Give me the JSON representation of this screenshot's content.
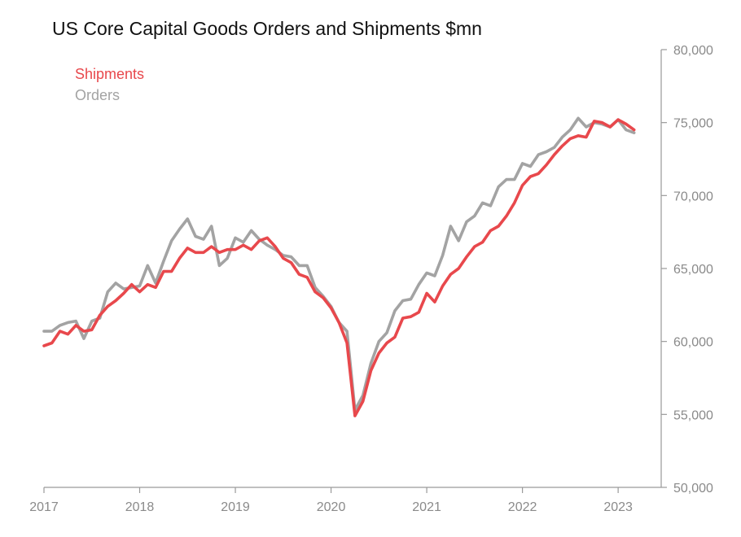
{
  "chart_data": {
    "type": "line",
    "title": "US Core Capital Goods Orders and Shipments $mn",
    "xlabel": "",
    "ylabel": "",
    "x_start": 2017.0,
    "x_step": 0.08333,
    "xlim": [
      2017.0,
      2023.45
    ],
    "ylim": [
      50000,
      80000
    ],
    "y_axis_side": "right",
    "x_ticks": [
      "2017",
      "2018",
      "2019",
      "2020",
      "2021",
      "2022",
      "2023"
    ],
    "y_ticks": [
      "50,000",
      "55,000",
      "60,000",
      "65,000",
      "70,000",
      "75,000",
      "80,000"
    ],
    "legend_position": "top-left",
    "colors": {
      "shipments": "#e8484c",
      "orders": "#a3a3a3"
    },
    "series": [
      {
        "name": "Shipments",
        "values": [
          59700,
          59900,
          60700,
          60500,
          61100,
          60700,
          60800,
          61800,
          62400,
          62800,
          63300,
          63900,
          63400,
          63900,
          63700,
          64800,
          64800,
          65700,
          66400,
          66100,
          66100,
          66500,
          66100,
          66300,
          66300,
          66600,
          66300,
          66900,
          67100,
          66500,
          65700,
          65400,
          64600,
          64400,
          63400,
          63000,
          62300,
          61300,
          59900,
          54900,
          55900,
          58000,
          59200,
          59900,
          60300,
          61600,
          61700,
          62000,
          63300,
          62700,
          63800,
          64600,
          65000,
          65800,
          66500,
          66800,
          67600,
          67900,
          68600,
          69500,
          70700,
          71300,
          71500,
          72100,
          72800,
          73400,
          73900,
          74100,
          74000,
          75100,
          75000,
          74700,
          75200,
          74900,
          74500
        ]
      },
      {
        "name": "Orders",
        "values": [
          60700,
          60700,
          61100,
          61300,
          61400,
          60200,
          61400,
          61600,
          63400,
          64000,
          63600,
          63700,
          63800,
          65200,
          64000,
          65500,
          66900,
          67700,
          68400,
          67200,
          67000,
          67900,
          65200,
          65700,
          67100,
          66800,
          67600,
          67000,
          66600,
          66300,
          65900,
          65800,
          65200,
          65200,
          63700,
          63100,
          62400,
          61300,
          60700,
          55300,
          56300,
          58500,
          60000,
          60600,
          62100,
          62800,
          62900,
          63900,
          64700,
          64500,
          65900,
          67900,
          66900,
          68200,
          68600,
          69500,
          69300,
          70600,
          71100,
          71100,
          72200,
          72000,
          72800,
          73000,
          73300,
          74000,
          74500,
          75300,
          74700,
          75000,
          74900,
          74700,
          75200,
          74500,
          74300
        ]
      }
    ]
  }
}
